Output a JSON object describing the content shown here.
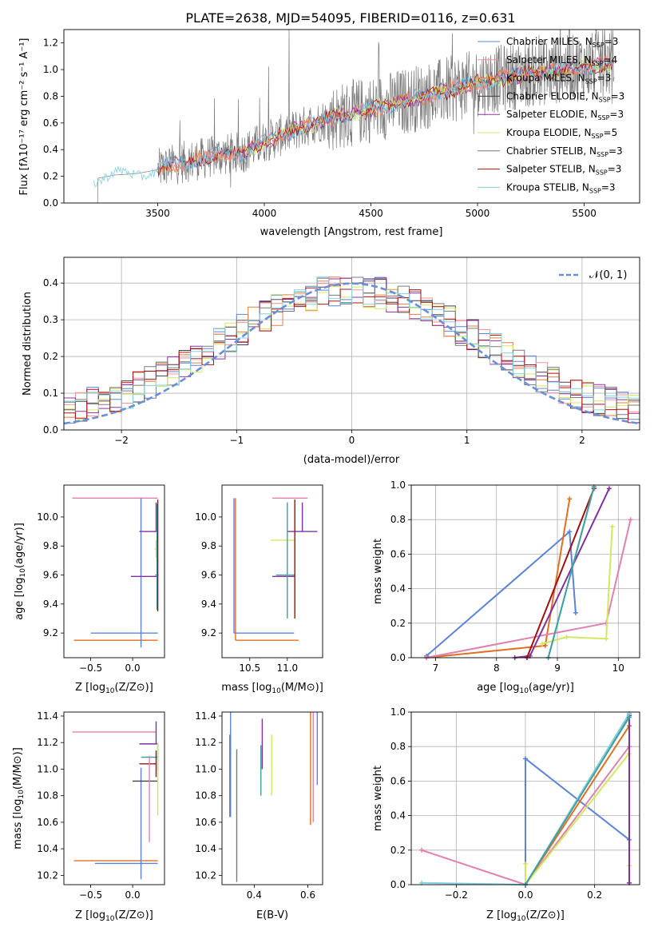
{
  "figure": {
    "title": "PLATE=2638, MJD=54095, FIBERID=0116, z=0.631"
  },
  "palette": {
    "Chabrier MILES": "#5b84d8",
    "Salpeter MILES": "#ff9090",
    "Kroupa MILES": "#e08040",
    "Chabrier ELODIE": "#404040",
    "Salpeter ELODIE": "#9030a0",
    "Kroupa ELODIE": "#d0e860",
    "Chabrier STELIB": "#7a7a7a",
    "Salpeter STELIB": "#b01010",
    "Kroupa STELIB": "#80d0e0",
    "pink": "#e080b0",
    "orange": "#e07020",
    "blue": "#5b84d8",
    "purple": "#8030a0",
    "lime": "#d0e860",
    "darkred": "#a01010",
    "teal": "#40a0a0",
    "gray": "#7a7a7a",
    "cyan": "#80d0e0",
    "normal_curve": "#6a8fd8"
  },
  "chart_data": [
    {
      "id": "spectrum",
      "type": "line",
      "xlabel": "wavelength [Angstrom, rest frame]",
      "ylabel": "Flux [f_λ 10^-17 erg cm^-2 s^-1 A^-1]",
      "xlim": [
        3060,
        5760
      ],
      "ylim": [
        0,
        1.3
      ],
      "xticks": [
        3500,
        4000,
        4500,
        5000,
        5500
      ],
      "yticks": [
        "0.0",
        "0.2",
        "0.4",
        "0.6",
        "0.8",
        "1.0",
        "1.2"
      ],
      "grid": false,
      "legend_position": "top-right",
      "legend": [
        {
          "label": "Chabrier MILES, N",
          "sub": "SSP",
          "tail": "=3",
          "color": "#5b84d8"
        },
        {
          "label": "Salpeter MILES, N",
          "sub": "SSP",
          "tail": "=4",
          "color": "#ff9090"
        },
        {
          "label": "Kroupa MILES, N",
          "sub": "SSP",
          "tail": "=3",
          "color": "#e08040"
        },
        {
          "label": "Chabrier ELODIE, N",
          "sub": "SSP",
          "tail": "=3",
          "color": "#404040"
        },
        {
          "label": "Salpeter ELODIE, N",
          "sub": "SSP",
          "tail": "=3",
          "color": "#9030a0"
        },
        {
          "label": "Kroupa ELODIE, N",
          "sub": "SSP",
          "tail": "=5",
          "color": "#d0e860"
        },
        {
          "label": "Chabrier STELIB, N",
          "sub": "SSP",
          "tail": "=3",
          "color": "#7a7a7a"
        },
        {
          "label": "Salpeter STELIB, N",
          "sub": "SSP",
          "tail": "=3",
          "color": "#b01010"
        },
        {
          "label": "Kroupa STELIB, N",
          "sub": "SSP",
          "tail": "=3",
          "color": "#80d0e0"
        }
      ],
      "continuum": {
        "x": [
          3200,
          3300,
          3400,
          3500,
          3600,
          3700,
          3800,
          3900,
          4000,
          4100,
          4200,
          4300,
          4400,
          4500,
          4600,
          4700,
          4800,
          4900,
          5000,
          5100,
          5200,
          5300,
          5400,
          5500,
          5640
        ],
        "y": [
          0.18,
          0.21,
          0.22,
          0.25,
          0.3,
          0.33,
          0.36,
          0.38,
          0.46,
          0.52,
          0.58,
          0.63,
          0.67,
          0.7,
          0.74,
          0.78,
          0.82,
          0.86,
          0.9,
          0.93,
          0.96,
          0.98,
          1.0,
          1.02,
          1.05
        ]
      }
    },
    {
      "id": "residuals",
      "type": "line",
      "xlabel": "(data-model)/error",
      "ylabel": "Normed distribution",
      "xlim": [
        -2.5,
        2.5
      ],
      "ylim": [
        0,
        0.47
      ],
      "xticks": [
        -2,
        -1,
        0,
        1,
        2
      ],
      "xticklabels": [
        "−2",
        "−1",
        "0",
        "1",
        "2"
      ],
      "yticks": [
        "0.0",
        "0.1",
        "0.2",
        "0.3",
        "0.4"
      ],
      "grid": true,
      "legend_position": "top-right",
      "legend_label": "𝒩(0, 1)",
      "normal": {
        "mean": 0,
        "std": 1
      }
    },
    {
      "id": "z-vs-age",
      "type": "scatter",
      "xlabel": "Z [log10(Z/Z⊙)]",
      "ylabel": "age [log10(age/yr)]",
      "xlim": [
        -0.82,
        0.38
      ],
      "ylim": [
        9.03,
        10.22
      ],
      "xticks": [
        "−0.5",
        "0.0"
      ],
      "xtick_values": [
        -0.5,
        0.0
      ],
      "yticks": [
        "9.2",
        "9.4",
        "9.6",
        "9.8",
        "10.0"
      ],
      "ytick_values": [
        9.2,
        9.4,
        9.6,
        9.8,
        10.0
      ],
      "points": [
        {
          "x": 0.28,
          "xerr": [
            1.0,
            0.02
          ],
          "y": 10.13,
          "yerr": [
            0,
            0
          ],
          "color": "#e080b0"
        },
        {
          "x": 0.3,
          "xerr": [
            1.0,
            0.0
          ],
          "y": 9.15,
          "yerr": [
            0,
            0
          ],
          "color": "#e07020"
        },
        {
          "x": 0.1,
          "xerr": [
            0.6,
            0.2
          ],
          "y": 9.2,
          "yerr": [
            0.1,
            0.93
          ],
          "color": "#5b84d8"
        },
        {
          "x": 0.28,
          "xerr": [
            0.3,
            0.02
          ],
          "y": 9.59,
          "yerr": [
            0,
            0
          ],
          "color": "#8030a0"
        },
        {
          "x": 0.28,
          "xerr": [
            0.2,
            0.02
          ],
          "y": 9.9,
          "yerr": [
            0,
            0.2
          ],
          "color": "#8030a0"
        },
        {
          "x": 0.28,
          "xerr": [
            0.02,
            0.02
          ],
          "y": 9.78,
          "yerr": [
            0.06,
            0.06
          ],
          "color": "#d0e860"
        },
        {
          "x": 0.29,
          "xerr": [
            0.02,
            0.02
          ],
          "y": 9.6,
          "yerr": [
            0.24,
            0.49
          ],
          "color": "#40a0a0"
        },
        {
          "x": 0.3,
          "xerr": [
            0.0,
            0.0
          ],
          "y": 9.6,
          "yerr": [
            0.25,
            0.52
          ],
          "color": "#a01010"
        }
      ]
    },
    {
      "id": "mass-vs-age",
      "type": "scatter",
      "xlabel": "mass [log10(M/M⊙)]",
      "ylabel": "",
      "xlim": [
        10.13,
        11.47
      ],
      "ylim": [
        9.03,
        10.22
      ],
      "xticks": [
        "10.5",
        "11.0"
      ],
      "xtick_values": [
        10.5,
        11.0
      ],
      "yticks": [
        "9.2",
        "9.4",
        "9.6",
        "9.8",
        "10.0"
      ],
      "ytick_values": [
        9.2,
        9.4,
        9.6,
        9.8,
        10.0
      ],
      "points": [
        {
          "x": 11.27,
          "xerr": [
            0.47,
            0.0
          ],
          "y": 10.13,
          "yerr": [
            0,
            0
          ],
          "color": "#e080b0"
        },
        {
          "x": 10.31,
          "xerr": [
            0.0,
            0.84
          ],
          "y": 9.15,
          "yerr": [
            0,
            0.98
          ],
          "color": "#e07020"
        },
        {
          "x": 10.29,
          "xerr": [
            0.0,
            0.8
          ],
          "y": 9.2,
          "yerr": [
            0,
            0.93
          ],
          "color": "#5b84d8"
        },
        {
          "x": 11.1,
          "xerr": [
            0.3,
            0.0
          ],
          "y": 9.59,
          "yerr": [
            0,
            0
          ],
          "color": "#8030a0"
        },
        {
          "x": 11.2,
          "xerr": [
            0.2,
            0.2
          ],
          "y": 9.9,
          "yerr": [
            0,
            0.2
          ],
          "color": "#8030a0"
        },
        {
          "x": 10.94,
          "xerr": [
            0.16,
            0.16
          ],
          "y": 9.84,
          "yerr": [
            0,
            0
          ],
          "color": "#d0e860"
        },
        {
          "x": 11.0,
          "xerr": [
            0.15,
            0.1
          ],
          "y": 9.6,
          "yerr": [
            0.3,
            0.5
          ],
          "color": "#40a0a0"
        },
        {
          "x": 11.1,
          "xerr": [
            0,
            0
          ],
          "y": 9.6,
          "yerr": [
            0.3,
            0.52
          ],
          "color": "#a01010"
        }
      ]
    },
    {
      "id": "age-vs-weight",
      "type": "line",
      "xlabel": "age [log10(age/yr)]",
      "ylabel": "mass weight",
      "xlim": [
        6.6,
        10.35
      ],
      "ylim": [
        0,
        1.0
      ],
      "xticks": [
        "7",
        "8",
        "9",
        "10"
      ],
      "xtick_values": [
        7,
        8,
        9,
        10
      ],
      "yticks": [
        "0.0",
        "0.2",
        "0.4",
        "0.6",
        "0.8",
        "1.0"
      ],
      "ytick_values": [
        0,
        0.2,
        0.4,
        0.6,
        0.8,
        1.0
      ],
      "grid": true,
      "series": [
        {
          "color": "#5b84d8",
          "x": [
            6.85,
            9.2,
            9.3
          ],
          "y": [
            0.01,
            0.73,
            0.26
          ]
        },
        {
          "color": "#e07020",
          "x": [
            6.85,
            8.8,
            9.2
          ],
          "y": [
            0.0,
            0.07,
            0.92
          ]
        },
        {
          "color": "#e080b0",
          "x": [
            6.85,
            9.8,
            10.2
          ],
          "y": [
            0.0,
            0.2,
            0.8
          ]
        },
        {
          "color": "#d0e860",
          "x": [
            8.75,
            9.15,
            9.8,
            9.9
          ],
          "y": [
            0.08,
            0.12,
            0.11,
            0.76
          ]
        },
        {
          "color": "#8030a0",
          "x": [
            8.3,
            8.55,
            9.85
          ],
          "y": [
            0.0,
            0.01,
            0.98
          ]
        },
        {
          "color": "#a01010",
          "x": [
            8.5,
            9.6
          ],
          "y": [
            0.0,
            0.98
          ]
        },
        {
          "color": "#80d0e0",
          "x": [
            8.85,
            9.6
          ],
          "y": [
            0.0,
            0.99
          ]
        },
        {
          "color": "#40a0a0",
          "x": [
            8.85,
            9.6
          ],
          "y": [
            0.0,
            0.99
          ]
        }
      ]
    },
    {
      "id": "z-vs-mass",
      "type": "scatter",
      "xlabel": "Z [log10(Z/Z⊙)]",
      "ylabel": "mass [log10(M/M⊙)]",
      "xlim": [
        -0.82,
        0.38
      ],
      "ylim": [
        10.13,
        11.43
      ],
      "xticks": [
        "−0.5",
        "0.0"
      ],
      "xtick_values": [
        -0.5,
        0.0
      ],
      "yticks": [
        "10.2",
        "10.4",
        "10.6",
        "10.8",
        "11.0",
        "11.2",
        "11.4"
      ],
      "ytick_values": [
        10.2,
        10.4,
        10.6,
        10.8,
        11.0,
        11.2,
        11.4
      ],
      "points": [
        {
          "x": 0.28,
          "xerr": [
            1.0,
            0.0
          ],
          "y": 11.28,
          "yerr": [
            0,
            0
          ],
          "color": "#e080b0"
        },
        {
          "x": 0.3,
          "xerr": [
            1.0,
            0.0
          ],
          "y": 10.31,
          "yerr": [
            0,
            0
          ],
          "color": "#e07020"
        },
        {
          "x": 0.1,
          "xerr": [
            0.55,
            0.2
          ],
          "y": 10.29,
          "yerr": [
            0.12,
            0.72
          ],
          "color": "#5b84d8"
        },
        {
          "x": 0.28,
          "xerr": [
            0.2,
            0.02
          ],
          "y": 11.19,
          "yerr": [
            0,
            0.17
          ],
          "color": "#8030a0"
        },
        {
          "x": 0.3,
          "xerr": [
            0.2,
            0.0
          ],
          "y": 11.09,
          "yerr": [
            0.1,
            0.1
          ],
          "color": "#40a0a0"
        },
        {
          "x": 0.28,
          "xerr": [
            0.2,
            0.0
          ],
          "y": 11.04,
          "yerr": [
            0.1,
            0.1
          ],
          "color": "#a01010"
        },
        {
          "x": 0.3,
          "xerr": [
            0.3,
            0.0
          ],
          "y": 10.91,
          "yerr": [
            0,
            0
          ],
          "color": "#404040"
        },
        {
          "x": 0.2,
          "xerr": [
            0,
            0
          ],
          "y": 10.9,
          "yerr": [
            0.45,
            0.2
          ],
          "color": "#e080b0"
        },
        {
          "x": 0.3,
          "xerr": [
            0,
            0
          ],
          "y": 11.0,
          "yerr": [
            0.35,
            0.2
          ],
          "color": "#d0e860"
        }
      ]
    },
    {
      "id": "ebv-vs-mass",
      "type": "scatter",
      "xlabel": "E(B-V)",
      "ylabel": "",
      "xlim": [
        0.28,
        0.655
      ],
      "ylim": [
        10.13,
        11.43
      ],
      "xticks": [
        "0.4",
        "0.6"
      ],
      "xtick_values": [
        0.4,
        0.6
      ],
      "yticks": [
        "10.2",
        "10.4",
        "10.6",
        "10.8",
        "11.0",
        "11.2",
        "11.4"
      ],
      "ytick_values": [
        10.2,
        10.4,
        10.6,
        10.8,
        11.0,
        11.2,
        11.4
      ],
      "points": [
        {
          "x": 0.31,
          "yerr": [
            0.54,
            0.08
          ],
          "y": 11.18,
          "color": "#a01010"
        },
        {
          "x": 0.312,
          "yerr": [
            0.4,
            0.4
          ],
          "y": 11.04,
          "color": "#5b84d8"
        },
        {
          "x": 0.335,
          "yerr": [
            0.8,
            0.2
          ],
          "y": 10.95,
          "color": "#7a7a7a"
        },
        {
          "x": 0.425,
          "yerr": [
            0.2,
            0.18
          ],
          "y": 11.0,
          "color": "#40a0a0"
        },
        {
          "x": 0.43,
          "yerr": [
            0.2,
            0.18
          ],
          "y": 11.2,
          "color": "#8030a0"
        },
        {
          "x": 0.465,
          "yerr": [
            0.2,
            0.26
          ],
          "y": 11.0,
          "color": "#d0e860"
        },
        {
          "x": 0.61,
          "yerr": [
            0.3,
            0.92
          ],
          "y": 10.88,
          "color": "#e07020"
        },
        {
          "x": 0.62,
          "yerr": [
            0.2,
            0.95
          ],
          "y": 10.8,
          "color": "#e080b0"
        },
        {
          "x": 0.635,
          "yerr": [
            0.1,
            0.75
          ],
          "y": 10.98,
          "color": "#5b84d8"
        }
      ]
    },
    {
      "id": "z-vs-weight",
      "type": "line",
      "xlabel": "Z [log10(Z/Z⊙)]",
      "ylabel": "mass weight",
      "xlim": [
        -0.33,
        0.33
      ],
      "ylim": [
        0,
        1.0
      ],
      "xticks": [
        "−0.2",
        "0.0",
        "0.2"
      ],
      "xtick_values": [
        -0.2,
        0.0,
        0.2
      ],
      "yticks": [
        "0.0",
        "0.2",
        "0.4",
        "0.6",
        "0.8",
        "1.0"
      ],
      "ytick_values": [
        0,
        0.2,
        0.4,
        0.6,
        0.8,
        1.0
      ],
      "grid": true,
      "series": [
        {
          "color": "#5b84d8",
          "x": [
            0.0,
            0.0,
            0.3
          ],
          "y": [
            0.0,
            0.73,
            0.26
          ]
        },
        {
          "color": "#e080b0",
          "x": [
            -0.3,
            0.0,
            0.3
          ],
          "y": [
            0.2,
            0.0,
            0.8
          ]
        },
        {
          "color": "#e07020",
          "x": [
            0.0,
            0.3
          ],
          "y": [
            0.0,
            0.92
          ]
        },
        {
          "color": "#d0e860",
          "x": [
            0.0,
            0.0,
            0.3,
            0.3
          ],
          "y": [
            0.12,
            0.0,
            0.76,
            0.11
          ]
        },
        {
          "color": "#8030a0",
          "x": [
            0.0,
            0.3,
            0.3
          ],
          "y": [
            0.0,
            0.98,
            0.01
          ]
        },
        {
          "color": "#7a7a7a",
          "x": [
            0.0,
            0.3
          ],
          "y": [
            0.0,
            0.99
          ]
        },
        {
          "color": "#80d0e0",
          "x": [
            -0.3,
            0.0,
            0.3
          ],
          "y": [
            0.01,
            0.0,
            0.99
          ]
        },
        {
          "color": "#40a0a0",
          "x": [
            0.0,
            0.3
          ],
          "y": [
            0.0,
            0.97
          ]
        }
      ]
    }
  ]
}
